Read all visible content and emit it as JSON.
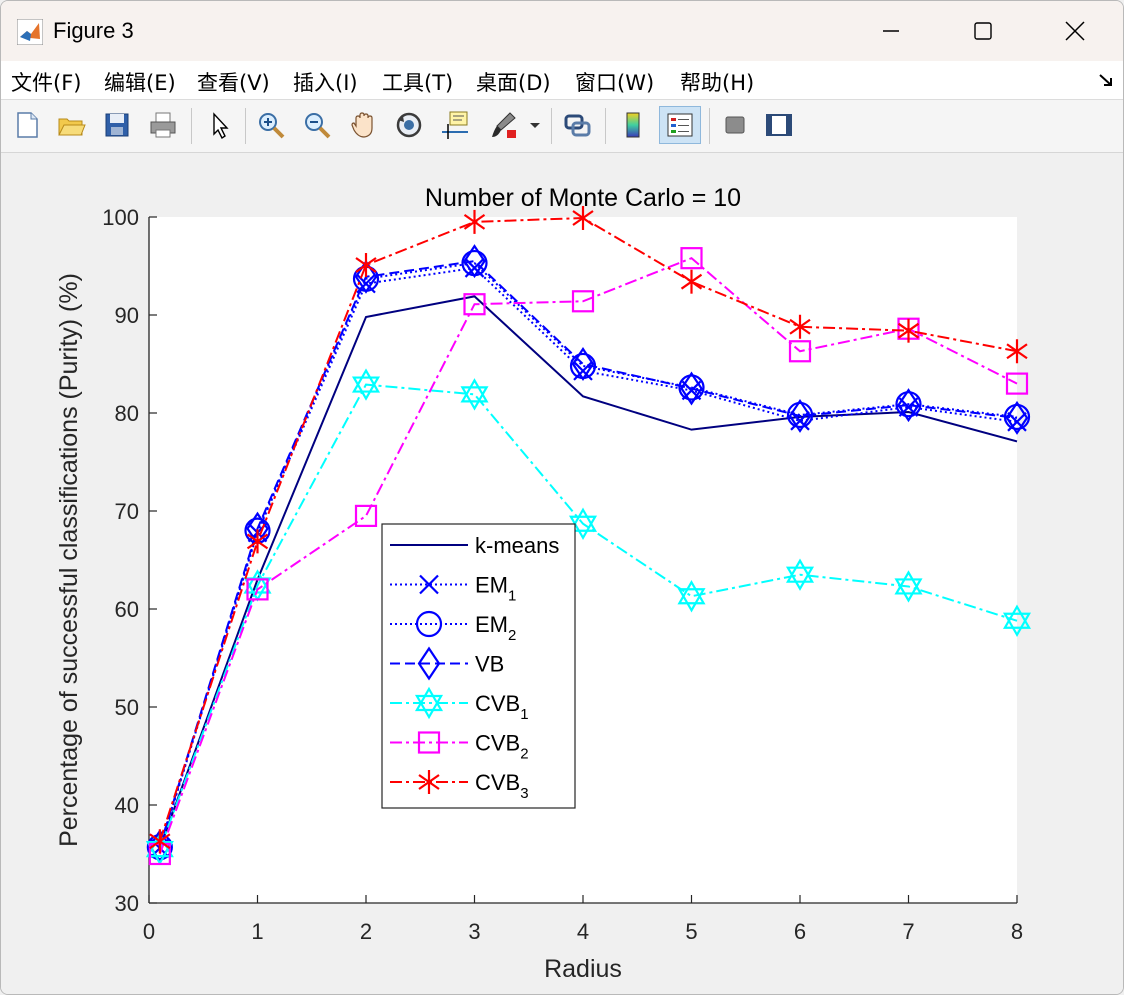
{
  "window": {
    "title": "Figure 3",
    "controls": [
      "minimize",
      "maximize",
      "close"
    ]
  },
  "menu": {
    "items": [
      "文件(F)",
      "编辑(E)",
      "查看(V)",
      "插入(I)",
      "工具(T)",
      "桌面(D)",
      "窗口(W)",
      "帮助(H)"
    ]
  },
  "toolbar": {
    "icons": [
      "new-figure-icon",
      "open-icon",
      "save-icon",
      "print-icon",
      "pointer-icon",
      "zoom-in-icon",
      "zoom-out-icon",
      "pan-icon",
      "rotate-icon",
      "data-cursor-icon",
      "brush-icon",
      "link-icon",
      "colorbar-icon",
      "legend-icon",
      "hide-plot-tools-icon",
      "show-plot-tools-icon"
    ],
    "active": "legend-icon"
  },
  "chart_data": {
    "type": "line",
    "title": "Number of Monte Carlo = 10",
    "xlabel": "Radius",
    "ylabel": "Percentage of successful classifications (Purity) (%)",
    "xlim": [
      0,
      8
    ],
    "ylim": [
      30,
      100
    ],
    "xticks": [
      0,
      1,
      2,
      3,
      4,
      5,
      6,
      7,
      8
    ],
    "yticks": [
      30,
      40,
      50,
      60,
      70,
      80,
      90,
      100
    ],
    "grid": false,
    "legend_position": "inside-center-left",
    "x": [
      0.1,
      1,
      2,
      3,
      4,
      5,
      6,
      7,
      8
    ],
    "series": [
      {
        "name": "k-means",
        "sub": "",
        "color": "#000080",
        "dash": "",
        "marker": "none",
        "values": [
          35.6,
          63.0,
          89.8,
          91.9,
          81.7,
          78.3,
          79.6,
          80.1,
          77.1
        ]
      },
      {
        "name": "EM",
        "sub": "1",
        "color": "#0000ff",
        "dash": "2,3",
        "marker": "x",
        "values": [
          35.6,
          67.8,
          93.2,
          94.8,
          84.3,
          82.3,
          79.2,
          80.6,
          79.1
        ]
      },
      {
        "name": "EM",
        "sub": "2",
        "color": "#0000ff",
        "dash": "2,3",
        "marker": "circle",
        "values": [
          35.7,
          68.0,
          93.7,
          95.3,
          84.8,
          82.6,
          79.8,
          80.9,
          79.6
        ]
      },
      {
        "name": "VB",
        "sub": "",
        "color": "#0000ff",
        "dash": "10,5",
        "marker": "diamond",
        "values": [
          35.8,
          68.2,
          93.9,
          95.5,
          85.0,
          82.5,
          79.7,
          80.8,
          79.5
        ]
      },
      {
        "name": "CVB",
        "sub": "1",
        "color": "#00ffff",
        "dash": "12,4,3,4",
        "marker": "hexagram",
        "values": [
          35.5,
          62.4,
          82.9,
          81.9,
          68.7,
          61.3,
          63.5,
          62.3,
          58.8
        ]
      },
      {
        "name": "CVB",
        "sub": "2",
        "color": "#ff00ff",
        "dash": "12,4,3,4",
        "marker": "square",
        "values": [
          35.0,
          62.0,
          69.5,
          91.1,
          91.4,
          95.8,
          86.3,
          88.6,
          83.0
        ]
      },
      {
        "name": "CVB",
        "sub": "3",
        "color": "#ff0000",
        "dash": "12,4,3,4",
        "marker": "asterisk",
        "values": [
          36.3,
          66.9,
          95.1,
          99.5,
          99.9,
          93.4,
          88.8,
          88.4,
          86.3
        ]
      }
    ]
  }
}
